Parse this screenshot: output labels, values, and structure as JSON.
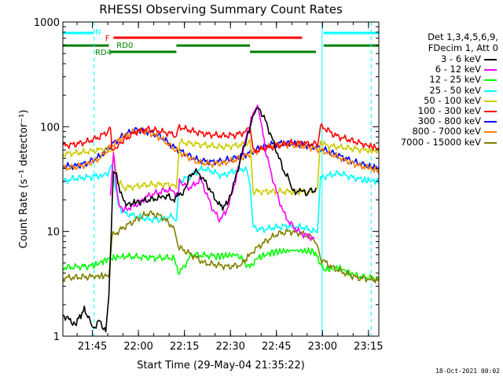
{
  "chart_data": {
    "type": "line",
    "title": "RHESSI Observing Summary Count Rates",
    "xlabel": "Start Time (29-May-04 21:35:22)",
    "ylabel": "Count Rate (s⁻¹ detector⁻¹)",
    "yscale": "log",
    "ylim": [
      1,
      1000
    ],
    "xlim_minutes": [
      0,
      103
    ],
    "y_ticks": [
      "1",
      "10",
      "100",
      "1000"
    ],
    "x_ticks": [
      {
        "label": "21:45",
        "t": 9.63
      },
      {
        "label": "22:00",
        "t": 24.63
      },
      {
        "label": "22:15",
        "t": 39.63
      },
      {
        "label": "22:30",
        "t": 54.63
      },
      {
        "label": "22:45",
        "t": 69.63
      },
      {
        "label": "23:00",
        "t": 84.63
      },
      {
        "label": "23:15",
        "t": 99.63
      }
    ],
    "legend_header": [
      "Det 1,3,4,5,6,9,",
      "FDecim 1, Att 0"
    ],
    "series": [
      {
        "name": "3 - 6 keV",
        "color": "#000000",
        "t": [
          0,
          4,
          7,
          10,
          12,
          14,
          15,
          16.5,
          17.5,
          19,
          21,
          24,
          28,
          32,
          35,
          36,
          37.5,
          39.5,
          41,
          43,
          45,
          47,
          49,
          51,
          52.5,
          54,
          56,
          58,
          60,
          61.5,
          62,
          63,
          64,
          66,
          68,
          70,
          72,
          74,
          75,
          75.8,
          76.5,
          78,
          80,
          81,
          82.5
        ],
        "v": [
          1.6,
          1.3,
          1.8,
          1.2,
          1.4,
          1.1,
          2.5,
          38,
          34,
          22,
          18,
          19,
          20,
          21,
          22,
          20,
          22,
          24,
          32,
          38,
          34,
          28,
          22,
          18,
          17,
          20,
          30,
          50,
          80,
          110,
          130,
          145,
          150,
          115,
          80,
          55,
          38,
          30,
          26,
          22,
          25,
          24,
          23,
          24,
          25
        ]
      },
      {
        "name": "6 - 12 keV",
        "color": "#ff00ff",
        "t": [
          15.5,
          16.5,
          17.5,
          18.5,
          20,
          22,
          24,
          26,
          28,
          30,
          32,
          34,
          36,
          37.5,
          38,
          39.5,
          41,
          43,
          45,
          47,
          49,
          51,
          53,
          55,
          57,
          59,
          61,
          62.5,
          63.5,
          64.5,
          66,
          68,
          70,
          72,
          74,
          76,
          78,
          80,
          82
        ],
        "v": [
          22,
          52,
          26,
          17,
          16,
          17,
          18,
          20,
          22,
          23,
          24,
          25,
          24,
          22,
          30,
          28,
          26,
          28,
          32,
          22,
          16,
          13,
          15,
          22,
          38,
          65,
          105,
          150,
          160,
          120,
          60,
          35,
          22,
          15,
          12,
          10.5,
          9.5,
          9,
          8.5
        ]
      },
      {
        "name": "12 - 25 keV",
        "color": "#00ff00",
        "t": [
          0,
          10,
          15,
          20,
          30,
          36,
          38,
          42,
          50,
          57,
          61,
          63,
          68,
          75,
          82,
          85,
          90,
          95,
          103
        ],
        "v": [
          4.5,
          4.7,
          5.5,
          5.8,
          5.6,
          5.6,
          4.0,
          6.0,
          5.8,
          6.0,
          4.5,
          5.5,
          6.3,
          6.6,
          6.4,
          4.3,
          4.5,
          3.8,
          3.5
        ]
      },
      {
        "name": "25 - 50 keV",
        "color": "#00ffff",
        "t": [
          0,
          4,
          8,
          12,
          15,
          16,
          18,
          20,
          24,
          28,
          32,
          36,
          37,
          38,
          40,
          42,
          44,
          46,
          48,
          50,
          52,
          54,
          56,
          58,
          60,
          61,
          62,
          64,
          66,
          68,
          70,
          72,
          74,
          76,
          78,
          80,
          82,
          83,
          84,
          86,
          90,
          94,
          98,
          103
        ],
        "v": [
          30,
          32,
          33,
          34,
          36,
          45,
          18,
          15,
          14,
          13,
          13,
          14,
          13,
          30,
          32,
          34,
          38,
          40,
          38,
          36,
          34,
          36,
          38,
          40,
          38,
          30,
          11,
          10.5,
          10.5,
          10.8,
          11,
          11.2,
          11.2,
          11,
          11,
          10.5,
          10,
          10,
          32,
          34,
          36,
          33,
          31,
          30
        ]
      },
      {
        "name": "50 - 100 keV",
        "color": "#cccc00",
        "t": [
          0,
          4,
          8,
          12,
          15,
          16,
          18,
          20,
          24,
          28,
          32,
          36,
          37,
          38,
          40,
          44,
          48,
          52,
          56,
          60,
          61,
          62,
          66,
          70,
          74,
          78,
          82,
          83,
          84,
          86,
          90,
          94,
          98,
          103
        ],
        "v": [
          55,
          56,
          58,
          60,
          62,
          64,
          30,
          26,
          27,
          28,
          28,
          28,
          27,
          72,
          70,
          68,
          66,
          64,
          66,
          68,
          70,
          24,
          24,
          24,
          24,
          24,
          24,
          24,
          72,
          66,
          64,
          62,
          60,
          58
        ]
      },
      {
        "name": "100 - 300 keV",
        "color": "#ff0000",
        "t": [
          0,
          4,
          8,
          12,
          14,
          15,
          15.5,
          16,
          17,
          20,
          24,
          28,
          32,
          36,
          37,
          38,
          40,
          44,
          48,
          52,
          56,
          60,
          61,
          62,
          66,
          70,
          74,
          78,
          82,
          83,
          84,
          86,
          88,
          90,
          94,
          98,
          103
        ],
        "v": [
          66,
          68,
          72,
          80,
          88,
          95,
          100,
          60,
          62,
          75,
          90,
          95,
          90,
          85,
          80,
          100,
          95,
          88,
          84,
          82,
          83,
          90,
          100,
          58,
          62,
          66,
          70,
          70,
          68,
          66,
          100,
          95,
          85,
          80,
          74,
          68,
          62
        ]
      },
      {
        "name": "300 - 800 keV",
        "color": "#0000ff",
        "t": [
          0,
          4,
          8,
          12,
          16,
          20,
          24,
          28,
          32,
          36,
          40,
          44,
          48,
          52,
          56,
          60,
          64,
          68,
          72,
          76,
          80,
          84,
          88,
          92,
          96,
          100,
          103
        ],
        "v": [
          42,
          42,
          45,
          52,
          68,
          84,
          93,
          90,
          80,
          64,
          55,
          48,
          46,
          47,
          50,
          55,
          62,
          68,
          70,
          68,
          66,
          62,
          56,
          50,
          45,
          42,
          40
        ]
      },
      {
        "name": "800 - 7000 keV",
        "color": "#ff8000",
        "t": [
          0,
          4,
          8,
          12,
          16,
          20,
          24,
          28,
          32,
          36,
          40,
          44,
          48,
          52,
          56,
          60,
          64,
          68,
          72,
          76,
          80,
          84,
          88,
          92,
          96,
          100,
          103
        ],
        "v": [
          40,
          41,
          44,
          50,
          66,
          82,
          91,
          88,
          78,
          62,
          53,
          46,
          44,
          45,
          48,
          53,
          60,
          66,
          68,
          66,
          64,
          60,
          54,
          48,
          43,
          40,
          38
        ]
      },
      {
        "name": "7000 - 15000 keV",
        "color": "#808000",
        "t": [
          0,
          10,
          15,
          16,
          20,
          24,
          28,
          32,
          36,
          37,
          38,
          42,
          46,
          50,
          54,
          58,
          61,
          62,
          66,
          70,
          74,
          78,
          82,
          83,
          84,
          88,
          92,
          96,
          100,
          103
        ],
        "v": [
          3.6,
          3.7,
          3.8,
          9,
          11,
          13,
          15,
          14,
          11,
          9,
          7,
          6,
          5,
          4.8,
          4.6,
          4.8,
          6,
          6.5,
          8,
          9.5,
          10,
          9.5,
          8.5,
          7,
          5.5,
          4.5,
          4,
          3.6,
          3.5,
          3.4
        ]
      }
    ],
    "flags": [
      {
        "label": "N",
        "color": "#00ffff",
        "segments": [
          [
            0,
            10
          ],
          [
            85,
            103
          ]
        ],
        "level": 0
      }
    ],
    "flag_F": {
      "label": "F",
      "color": "#ff0000",
      "segments": [
        [
          16.5,
          78
        ]
      ]
    },
    "flag_RD0": {
      "label": "RD0",
      "color": "#008000",
      "segments": [
        [
          0,
          15
        ],
        [
          85,
          103
        ]
      ]
    },
    "flag_RD4": {
      "label": "RD4",
      "color": "#008000",
      "segments": [
        [
          15.5,
          37
        ],
        [
          37,
          61
        ],
        [
          61,
          82.5
        ]
      ]
    },
    "vertical_lines": [
      {
        "t": 0,
        "color": "#00ffff",
        "style": "solid"
      },
      {
        "t": 10.2,
        "color": "#00ffff",
        "style": "dashed"
      },
      {
        "t": 84.5,
        "color": "#00ffff",
        "style": "solid"
      },
      {
        "t": 100.5,
        "color": "#00ffff",
        "style": "dashed"
      }
    ]
  },
  "footer": "18-Oct-2021 00:02"
}
